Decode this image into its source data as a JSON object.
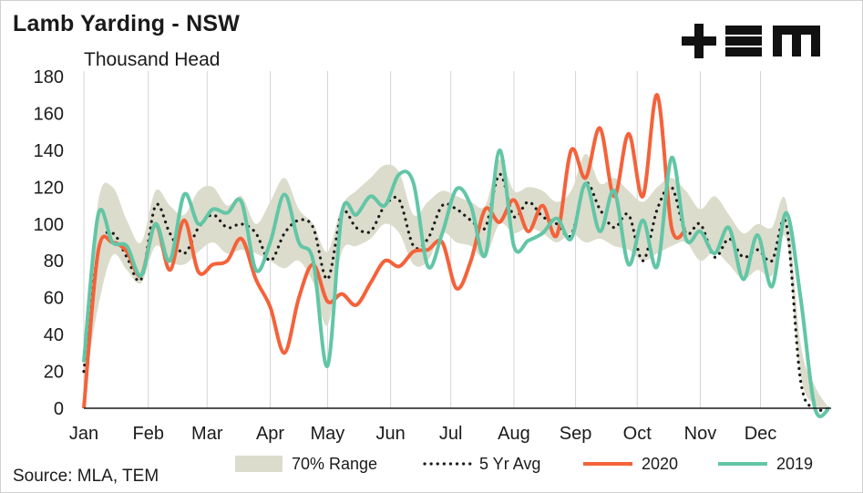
{
  "chart_data": {
    "type": "line",
    "title": "Lamb Yarding - NSW",
    "ylabel": "Thousand Head",
    "source": "Source: MLA, TEM",
    "logo_text": "+EM",
    "ylim": [
      0,
      180
    ],
    "yticks": [
      0,
      20,
      40,
      60,
      80,
      100,
      120,
      140,
      160,
      180
    ],
    "xlim": [
      1,
      53
    ],
    "month_labels": [
      {
        "label": "Jan",
        "week": 1
      },
      {
        "label": "Feb",
        "week": 5.5
      },
      {
        "label": "Mar",
        "week": 9.6
      },
      {
        "label": "Apr",
        "week": 14
      },
      {
        "label": "May",
        "week": 18
      },
      {
        "label": "Jun",
        "week": 22.4
      },
      {
        "label": "Jul",
        "week": 26.6
      },
      {
        "label": "Aug",
        "week": 31
      },
      {
        "label": "Sep",
        "week": 35.3
      },
      {
        "label": "Oct",
        "week": 39.6
      },
      {
        "label": "Nov",
        "week": 44
      },
      {
        "label": "Dec",
        "week": 48.2
      }
    ],
    "grid": {
      "vertical": true,
      "horizontal": false
    },
    "legend_position": "bottom",
    "legend": [
      "70% Range",
      "5 Yr Avg",
      "2020",
      "2019"
    ],
    "colors": {
      "range": "#dcdccc",
      "avg": "#1a1a1a",
      "y2020": "#f4623a",
      "y2019": "#62c6a6"
    },
    "series": [
      {
        "name": "70% Range",
        "kind": "band",
        "x": [
          1,
          2,
          3,
          4,
          5,
          6,
          7,
          8,
          9,
          10,
          11,
          12,
          13,
          14,
          15,
          16,
          17,
          18,
          19,
          20,
          21,
          22,
          23,
          24,
          25,
          26,
          27,
          28,
          29,
          30,
          31,
          32,
          33,
          34,
          35,
          36,
          37,
          38,
          39,
          40,
          41,
          42,
          43,
          44,
          45,
          46,
          47,
          48,
          49,
          50,
          51,
          52,
          53
        ],
        "low": [
          10,
          55,
          83,
          75,
          68,
          88,
          80,
          78,
          85,
          90,
          84,
          86,
          84,
          80,
          76,
          80,
          68,
          45,
          85,
          88,
          92,
          100,
          95,
          78,
          80,
          95,
          90,
          88,
          82,
          100,
          95,
          98,
          95,
          90,
          95,
          90,
          92,
          88,
          86,
          80,
          84,
          88,
          90,
          80,
          85,
          78,
          70,
          75,
          72,
          92,
          18,
          2,
          0
        ],
        "high": [
          28,
          112,
          120,
          102,
          90,
          118,
          110,
          105,
          118,
          120,
          110,
          115,
          100,
          112,
          125,
          108,
          100,
          85,
          110,
          118,
          125,
          132,
          128,
          105,
          112,
          118,
          115,
          112,
          110,
          135,
          118,
          120,
          118,
          112,
          118,
          138,
          122,
          125,
          118,
          112,
          120,
          125,
          118,
          108,
          115,
          105,
          95,
          100,
          98,
          112,
          35,
          12,
          0
        ]
      },
      {
        "name": "5 Yr Avg",
        "kind": "line",
        "x": [
          1,
          2,
          3,
          4,
          5,
          6,
          7,
          8,
          9,
          10,
          11,
          12,
          13,
          14,
          15,
          16,
          17,
          18,
          19,
          20,
          21,
          22,
          23,
          24,
          25,
          26,
          27,
          28,
          29,
          30,
          31,
          32,
          33,
          34,
          35,
          36,
          37,
          38,
          39,
          40,
          41,
          42,
          43,
          44,
          45,
          46,
          47,
          48,
          49,
          50,
          51,
          52,
          53
        ],
        "y": [
          20,
          85,
          95,
          82,
          70,
          110,
          95,
          84,
          98,
          105,
          98,
          100,
          95,
          80,
          95,
          102,
          98,
          70,
          106,
          98,
          96,
          110,
          113,
          88,
          92,
          110,
          108,
          102,
          98,
          127,
          104,
          112,
          104,
          100,
          94,
          122,
          108,
          98,
          105,
          80,
          108,
          120,
          95,
          100,
          82,
          92,
          82,
          86,
          80,
          100,
          15,
          0,
          0
        ]
      },
      {
        "name": "2020",
        "kind": "line",
        "x": [
          1,
          2,
          3,
          4,
          5,
          6,
          7,
          8,
          9,
          10,
          11,
          12,
          13,
          14,
          15,
          16,
          17,
          18,
          19,
          20,
          21,
          22,
          23,
          24,
          25,
          26,
          27,
          28,
          29,
          30,
          31,
          32,
          33,
          34,
          35,
          36,
          37,
          38,
          39,
          40,
          41,
          42,
          43
        ],
        "y": [
          0,
          85,
          90,
          85,
          72,
          100,
          75,
          102,
          74,
          78,
          80,
          92,
          70,
          55,
          30,
          60,
          78,
          58,
          62,
          56,
          68,
          80,
          77,
          85,
          86,
          90,
          65,
          80,
          108,
          101,
          113,
          96,
          110,
          94,
          140,
          125,
          152,
          115,
          149,
          115,
          170,
          98,
          97
        ]
      },
      {
        "name": "2019",
        "kind": "line",
        "x": [
          1,
          2,
          3,
          4,
          5,
          6,
          7,
          8,
          9,
          10,
          11,
          12,
          13,
          14,
          15,
          16,
          17,
          18,
          19,
          20,
          21,
          22,
          23,
          24,
          25,
          26,
          27,
          28,
          29,
          30,
          31,
          32,
          33,
          34,
          35,
          36,
          37,
          38,
          39,
          40,
          41,
          42,
          43,
          44,
          45,
          46,
          47,
          48,
          49,
          50,
          51,
          52,
          53
        ],
        "y": [
          25,
          105,
          90,
          88,
          72,
          100,
          80,
          116,
          100,
          108,
          106,
          112,
          75,
          90,
          116,
          90,
          80,
          23,
          106,
          105,
          115,
          110,
          127,
          122,
          77,
          95,
          119,
          110,
          83,
          140,
          88,
          91,
          95,
          103,
          92,
          122,
          96,
          118,
          78,
          102,
          77,
          136,
          92,
          96,
          84,
          98,
          70,
          94,
          66,
          106,
          60,
          0,
          0
        ]
      }
    ]
  }
}
